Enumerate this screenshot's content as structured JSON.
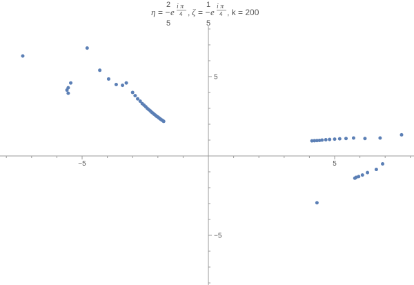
{
  "chart_data": {
    "type": "scatter",
    "title": {
      "eta_symbol": "η",
      "eta_numerator": "2",
      "eta_denominator": "5",
      "zeta_symbol": "ζ",
      "zeta_numerator": "1",
      "zeta_denominator": "5",
      "equals_minus": "= −",
      "base": "e",
      "exp_numerator": "i π",
      "exp_denominator": "4",
      "separator": ",",
      "k_label": ", k = 200"
    },
    "xlim": [
      -8.2,
      8.2
    ],
    "ylim": [
      -8.1,
      8.1
    ],
    "xticks": [
      -5,
      5
    ],
    "yticks": [
      -5,
      5
    ],
    "xtick_labels": [
      "−5",
      "5"
    ],
    "ytick_labels": [
      "−5",
      "5"
    ],
    "grid": false,
    "marker_color": "#5b7fb5",
    "axis_color": "#999999",
    "series": [
      {
        "points": [
          [
            -7.35,
            6.3
          ],
          [
            -4.8,
            6.8
          ],
          [
            -4.3,
            5.4
          ],
          [
            -3.95,
            4.85
          ],
          [
            -3.65,
            4.5
          ],
          [
            -3.4,
            4.45
          ],
          [
            -3.25,
            4.6
          ],
          [
            -5.45,
            4.6
          ],
          [
            -5.55,
            4.3
          ],
          [
            -5.6,
            4.15
          ],
          [
            -5.55,
            3.95
          ],
          [
            -3.0,
            4.0
          ],
          [
            -2.9,
            3.8
          ],
          [
            -2.8,
            3.6
          ],
          [
            -2.7,
            3.45
          ],
          [
            -2.62,
            3.3
          ],
          [
            -2.55,
            3.2
          ],
          [
            -2.48,
            3.1
          ],
          [
            -2.42,
            3.0
          ],
          [
            -2.36,
            2.92
          ],
          [
            -2.3,
            2.84
          ],
          [
            -2.25,
            2.76
          ],
          [
            -2.2,
            2.7
          ],
          [
            -2.15,
            2.63
          ],
          [
            -2.1,
            2.57
          ],
          [
            -2.05,
            2.5
          ],
          [
            -2.0,
            2.45
          ],
          [
            -1.96,
            2.4
          ],
          [
            -1.92,
            2.35
          ],
          [
            -1.88,
            2.3
          ],
          [
            -1.84,
            2.26
          ],
          [
            -1.8,
            2.22
          ],
          [
            -1.77,
            2.18
          ]
        ]
      },
      {
        "points": [
          [
            4.1,
            0.95
          ],
          [
            4.2,
            0.96
          ],
          [
            4.3,
            0.97
          ],
          [
            4.4,
            0.98
          ],
          [
            4.5,
            1.0
          ],
          [
            4.65,
            1.02
          ],
          [
            4.8,
            1.04
          ],
          [
            5.0,
            1.06
          ],
          [
            5.2,
            1.08
          ],
          [
            5.45,
            1.1
          ],
          [
            5.75,
            1.13
          ],
          [
            6.2,
            1.1
          ],
          [
            6.8,
            1.13
          ],
          [
            7.65,
            1.33
          ],
          [
            6.9,
            -0.5
          ],
          [
            6.65,
            -0.85
          ],
          [
            6.3,
            -1.05
          ],
          [
            6.1,
            -1.2
          ],
          [
            5.95,
            -1.3
          ],
          [
            5.85,
            -1.35
          ],
          [
            5.8,
            -1.4
          ],
          [
            4.3,
            -2.95
          ]
        ]
      }
    ]
  }
}
